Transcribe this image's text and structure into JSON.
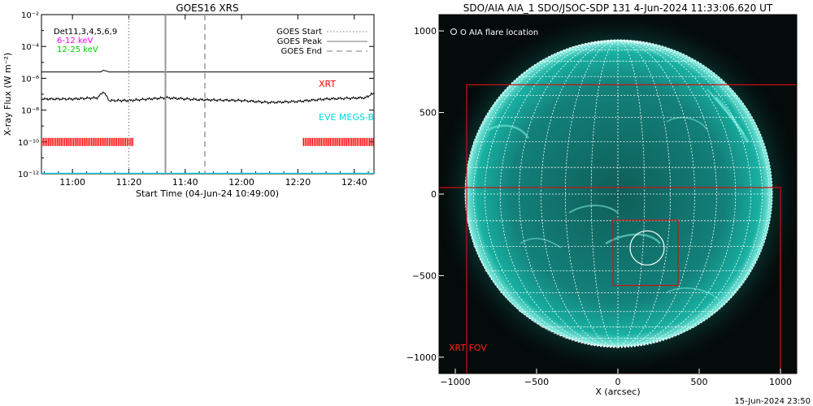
{
  "goes": {
    "title": "GOES16 XRS",
    "ylabel": "X-ray Flux (W m⁻²)",
    "xlabel": "Start Time (04-Jun-24 10:49:00)",
    "legend_left": [
      "Det11,3,4,5,6,9",
      "6-12 keV",
      "12-25 keV"
    ],
    "legend_right": [
      "GOES Start",
      "GOES Peak",
      "GOES End"
    ],
    "label_xrt": "XRT",
    "label_eve": "EVE MEGS-B",
    "colors": {
      "long": "#000000",
      "xrt": "#ff0000",
      "eve": "#00d8e8",
      "low_keV": "#ff00ff",
      "high_keV": "#00cc00"
    }
  },
  "aia": {
    "title": "SDO/AIA AIA_1 SDO/JSOC-SDP 131  4-Jun-2024 11:33:06.620 UT",
    "legend": "O AIA flare location",
    "fov_label": "XRT FOV",
    "xlabel": "X (arcsec)",
    "footer": "15-Jun-2024 23:50",
    "colors": {
      "disk": "#16b8a8",
      "grid": "#ffffff",
      "box": "#d01010"
    }
  },
  "chart_data": [
    {
      "type": "line",
      "title": "GOES16 XRS",
      "xlabel": "Start Time (04-Jun-24 10:49:00)",
      "ylabel": "X-ray Flux (W m⁻²)",
      "yscale": "log",
      "xlim": [
        "10:49",
        "12:47"
      ],
      "ylim": [
        1e-12,
        0.01
      ],
      "x_ticks": [
        "11:00",
        "11:20",
        "11:40",
        "12:00",
        "12:20",
        "12:40"
      ],
      "y_ticks": [
        "10⁻¹²",
        "10⁻¹⁰",
        "10⁻⁸",
        "10⁻⁶",
        "10⁻⁴",
        "10⁻²"
      ],
      "series": [
        {
          "name": "",
          "x": [
            "10:49",
            "11:10",
            "11:11",
            "11:13",
            "11:30",
            "12:00",
            "12:30",
            "12:47"
          ],
          "y": [
            2.5e-06,
            2.5e-06,
            3.2e-06,
            2.5e-06,
            2.5e-06,
            2.5e-06,
            2.5e-06,
            2.5e-06
          ]
        },
        {
          "name": "",
          "x": [
            "10:49",
            "11:00",
            "11:09",
            "11:11",
            "11:13",
            "11:20",
            "11:33",
            "11:45",
            "12:00",
            "12:10",
            "12:20",
            "12:30",
            "12:44",
            "12:47"
          ],
          "y": [
            5e-08,
            5e-08,
            6e-08,
            1.5e-07,
            4e-08,
            4e-08,
            6e-08,
            4.5e-08,
            4e-08,
            3e-08,
            3.5e-08,
            5e-08,
            6e-08,
            1.2e-07
          ]
        },
        {
          "name": "XRT",
          "segments": [
            [
              "10:49",
              "11:22"
            ],
            [
              "12:22",
              "12:47"
            ]
          ],
          "level": 1e-10
        },
        {
          "name": "EVE MEGS-B",
          "x": [
            "10:49",
            "12:47"
          ],
          "y": [
            1e-12,
            1e-12
          ]
        }
      ],
      "vlines": [
        {
          "name": "GOES Start",
          "x": "11:20",
          "style": "dotted"
        },
        {
          "name": "GOES Peak",
          "x": "11:33",
          "style": "solid"
        },
        {
          "name": "GOES End",
          "x": "11:47",
          "style": "dashed"
        }
      ],
      "legend_placement": "top-right",
      "grid": false
    },
    {
      "type": "image",
      "title": "SDO/AIA AIA_1 SDO/JSOC-SDP 131  4-Jun-2024 11:33:06.620 UT",
      "xlabel": "X (arcsec)",
      "xlim": [
        -1100,
        1100
      ],
      "ylim": [
        -1100,
        1100
      ],
      "x_ticks": [
        -1000,
        -500,
        0,
        500,
        1000
      ],
      "y_ticks": [
        1000,
        500,
        0,
        -500,
        -1000
      ],
      "solar_radius_arcsec": 945,
      "grid_spacing_deg": 10,
      "boxes": [
        {
          "name": "XRT FOV",
          "x": [
            -1110,
            1000
          ],
          "y": [
            -1110,
            40
          ]
        },
        {
          "name": "",
          "x": [
            -930,
            1100
          ],
          "y": [
            -1100,
            670
          ]
        },
        {
          "name": "",
          "x": [
            -30,
            370
          ],
          "y": [
            -560,
            -160
          ]
        }
      ],
      "circles": [
        {
          "name": "AIA flare location",
          "x": 180,
          "y": -330,
          "r": 105
        }
      ]
    }
  ]
}
